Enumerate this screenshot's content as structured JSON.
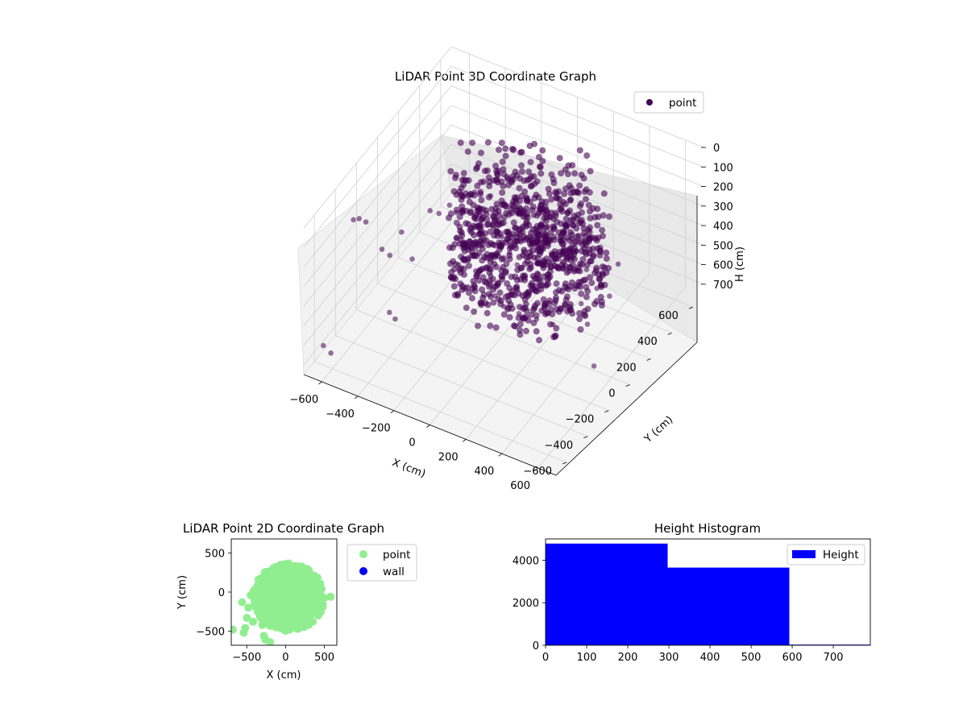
{
  "figure": {
    "background": "#ffffff"
  },
  "chart_data": [
    {
      "id": "scatter3d",
      "type": "scatter",
      "projection": "3d",
      "title": "LiDAR Point 3D Coordinate Graph",
      "xlabel": "X (cm)",
      "ylabel": "Y (cm)",
      "zlabel": "H (cm)",
      "xlim": [
        -700,
        700
      ],
      "ylim": [
        -700,
        700
      ],
      "zlim": [
        750,
        0
      ],
      "z_inverted": true,
      "x_ticks": [
        -600,
        -400,
        -200,
        0,
        200,
        400,
        600
      ],
      "y_ticks": [
        -600,
        -400,
        -200,
        0,
        200,
        400,
        600
      ],
      "z_ticks": [
        0,
        100,
        200,
        300,
        400,
        500,
        600,
        700
      ],
      "grid": true,
      "legend": {
        "position": "top-right",
        "entries": [
          {
            "label": "point",
            "color": "#440154"
          }
        ]
      },
      "series": [
        {
          "name": "point",
          "color": "#440154",
          "alpha": 0.55,
          "dense_cluster": {
            "description_of_shape": "dense dome of points around origin",
            "x_range": [
              -350,
              450
            ],
            "y_range": [
              -200,
              500
            ],
            "h_range": [
              0,
              600
            ]
          },
          "points": [
            [
              -650,
              -600,
              650
            ],
            [
              -620,
              -580,
              690
            ],
            [
              -600,
              -400,
              120
            ],
            [
              -580,
              -380,
              120
            ],
            [
              -560,
              -350,
              150
            ],
            [
              -500,
              -300,
              300
            ],
            [
              -480,
              -260,
              350
            ],
            [
              -450,
              -200,
              260
            ],
            [
              -420,
              -150,
              420
            ],
            [
              -400,
              -400,
              520
            ],
            [
              -380,
              -380,
              560
            ],
            [
              -350,
              -100,
              180
            ],
            [
              -330,
              -50,
              220
            ],
            [
              -300,
              0,
              200
            ],
            [
              -280,
              30,
              250
            ],
            [
              -260,
              60,
              180
            ],
            [
              -240,
              -40,
              320
            ],
            [
              -220,
              100,
              170
            ],
            [
              -200,
              80,
              290
            ],
            [
              -180,
              -120,
              380
            ],
            [
              -160,
              150,
              200
            ],
            [
              -140,
              20,
              330
            ],
            [
              -120,
              -60,
              430
            ],
            [
              -100,
              180,
              240
            ],
            [
              -80,
              120,
              360
            ],
            [
              -60,
              -20,
              460
            ],
            [
              -40,
              200,
              280
            ],
            [
              -20,
              90,
              400
            ],
            [
              0,
              -80,
              500
            ],
            [
              20,
              250,
              300
            ],
            [
              40,
              60,
              420
            ],
            [
              60,
              -100,
              520
            ],
            [
              80,
              300,
              320
            ],
            [
              100,
              150,
              450
            ],
            [
              120,
              -60,
              560
            ],
            [
              150,
              320,
              380
            ],
            [
              180,
              100,
              500
            ],
            [
              200,
              -30,
              580
            ],
            [
              240,
              280,
              420
            ],
            [
              260,
              150,
              520
            ],
            [
              280,
              -10,
              590
            ],
            [
              320,
              240,
              460
            ],
            [
              360,
              120,
              540
            ],
            [
              400,
              200,
              500
            ],
            [
              430,
              60,
              580
            ],
            [
              460,
              300,
              420
            ],
            [
              500,
              150,
              470
            ],
            [
              560,
              -100,
              640
            ]
          ]
        }
      ]
    },
    {
      "id": "scatter2d",
      "type": "scatter",
      "title": "LiDAR Point 2D Coordinate Graph",
      "xlabel": "X (cm)",
      "ylabel": "Y (cm)",
      "xlim": [
        -700,
        660
      ],
      "ylim": [
        -680,
        680
      ],
      "x_ticks": [
        -500,
        0,
        500
      ],
      "y_ticks": [
        -500,
        0,
        500
      ],
      "legend": {
        "position": "outside-right",
        "entries": [
          {
            "label": "point",
            "color": "#90ee90"
          },
          {
            "label": "wall",
            "color": "#0000ff"
          }
        ]
      },
      "series": [
        {
          "name": "point",
          "color": "#90ee90",
          "dense_region": {
            "x_range": [
              -420,
              500
            ],
            "y_range": [
              -500,
              370
            ]
          },
          "points": [
            [
              -680,
              -480
            ],
            [
              -560,
              -130
            ],
            [
              -540,
              -520
            ],
            [
              -520,
              -460
            ],
            [
              -500,
              -330
            ],
            [
              -480,
              -200
            ],
            [
              -450,
              -40
            ],
            [
              -420,
              -380
            ],
            [
              -380,
              -100
            ],
            [
              -360,
              -250
            ],
            [
              -340,
              40
            ],
            [
              -300,
              -420
            ],
            [
              -280,
              -560
            ],
            [
              -260,
              -610
            ],
            [
              -250,
              -150
            ],
            [
              -220,
              120
            ],
            [
              -200,
              -640
            ],
            [
              -180,
              -300
            ],
            [
              -150,
              220
            ],
            [
              -120,
              -450
            ],
            [
              -100,
              300
            ],
            [
              -60,
              340
            ],
            [
              0,
              360
            ],
            [
              50,
              350
            ],
            [
              120,
              330
            ],
            [
              180,
              280
            ],
            [
              240,
              200
            ],
            [
              300,
              120
            ],
            [
              360,
              40
            ],
            [
              400,
              -40
            ],
            [
              440,
              -80
            ],
            [
              480,
              -160
            ],
            [
              420,
              -300
            ],
            [
              350,
              -380
            ],
            [
              260,
              -420
            ],
            [
              150,
              -460
            ],
            [
              50,
              -480
            ],
            [
              -50,
              -470
            ],
            [
              -160,
              -430
            ],
            [
              580,
              -60
            ]
          ]
        },
        {
          "name": "wall",
          "color": "#0000ff",
          "points": []
        }
      ]
    },
    {
      "id": "histogram",
      "type": "bar",
      "title": "Height Histogram",
      "xlabel": "",
      "ylabel": "",
      "xlim": [
        0,
        790
      ],
      "ylim": [
        0,
        5000
      ],
      "x_ticks": [
        0,
        100,
        200,
        300,
        400,
        500,
        600,
        700
      ],
      "y_ticks": [
        0,
        2000,
        4000
      ],
      "legend": {
        "position": "top-right",
        "entries": [
          {
            "label": "Height",
            "color": "#0000ff"
          }
        ]
      },
      "series": [
        {
          "name": "Height",
          "color": "#0000ff",
          "bins": [
            {
              "start": 0,
              "end": 297,
              "count": 4780
            },
            {
              "start": 297,
              "end": 593,
              "count": 3650
            },
            {
              "start": 593,
              "end": 790,
              "count": 30
            }
          ]
        }
      ]
    }
  ]
}
